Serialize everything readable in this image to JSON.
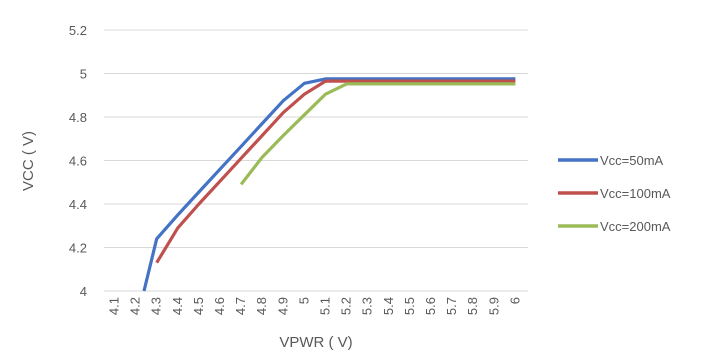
{
  "chart_data": {
    "type": "line",
    "title": "",
    "xlabel": "VPWR ( V)",
    "ylabel": "VCC ( V)",
    "x_ticks": [
      "4.1",
      "4.2",
      "4.3",
      "4.4",
      "4.5",
      "4.6",
      "4.7",
      "4.8",
      "4.9",
      "5",
      "5.1",
      "5.2",
      "5.3",
      "5.4",
      "5.5",
      "5.6",
      "5.7",
      "5.8",
      "5.9",
      "6"
    ],
    "y_ticks": [
      "4",
      "4.2",
      "4.4",
      "4.6",
      "4.8",
      "5",
      "5.2"
    ],
    "xlim": [
      4.1,
      6.0
    ],
    "ylim": [
      4.0,
      5.2
    ],
    "grid": "horizontal",
    "legend_position": "right",
    "series": [
      {
        "name": "Vcc=50mA",
        "color": "#4472C4",
        "points": [
          [
            4.24,
            4.0
          ],
          [
            4.3,
            4.24
          ],
          [
            4.4,
            4.35
          ],
          [
            4.5,
            4.455
          ],
          [
            4.6,
            4.56
          ],
          [
            4.7,
            4.665
          ],
          [
            4.8,
            4.77
          ],
          [
            4.9,
            4.875
          ],
          [
            5.0,
            4.955
          ],
          [
            5.1,
            4.975
          ],
          [
            5.2,
            4.975
          ],
          [
            5.3,
            4.975
          ],
          [
            5.4,
            4.975
          ],
          [
            5.5,
            4.975
          ],
          [
            5.6,
            4.975
          ],
          [
            5.7,
            4.975
          ],
          [
            5.8,
            4.975
          ],
          [
            5.9,
            4.975
          ],
          [
            6.0,
            4.975
          ]
        ]
      },
      {
        "name": "Vcc=100mA",
        "color": "#C0504D",
        "points": [
          [
            4.3,
            4.13
          ],
          [
            4.4,
            4.29
          ],
          [
            4.5,
            4.4
          ],
          [
            4.6,
            4.505
          ],
          [
            4.7,
            4.61
          ],
          [
            4.8,
            4.715
          ],
          [
            4.9,
            4.82
          ],
          [
            5.0,
            4.905
          ],
          [
            5.1,
            4.965
          ],
          [
            5.2,
            4.965
          ],
          [
            5.3,
            4.965
          ],
          [
            5.4,
            4.965
          ],
          [
            5.5,
            4.965
          ],
          [
            5.6,
            4.965
          ],
          [
            5.7,
            4.965
          ],
          [
            5.8,
            4.965
          ],
          [
            5.9,
            4.965
          ],
          [
            6.0,
            4.965
          ]
        ]
      },
      {
        "name": "Vcc=200mA",
        "color": "#9BBB59",
        "points": [
          [
            4.7,
            4.49
          ],
          [
            4.8,
            4.615
          ],
          [
            4.9,
            4.715
          ],
          [
            5.0,
            4.81
          ],
          [
            5.1,
            4.905
          ],
          [
            5.2,
            4.952
          ],
          [
            5.3,
            4.952
          ],
          [
            5.4,
            4.952
          ],
          [
            5.5,
            4.952
          ],
          [
            5.6,
            4.952
          ],
          [
            5.7,
            4.952
          ],
          [
            5.8,
            4.952
          ],
          [
            5.9,
            4.952
          ],
          [
            6.0,
            4.952
          ]
        ]
      }
    ]
  }
}
